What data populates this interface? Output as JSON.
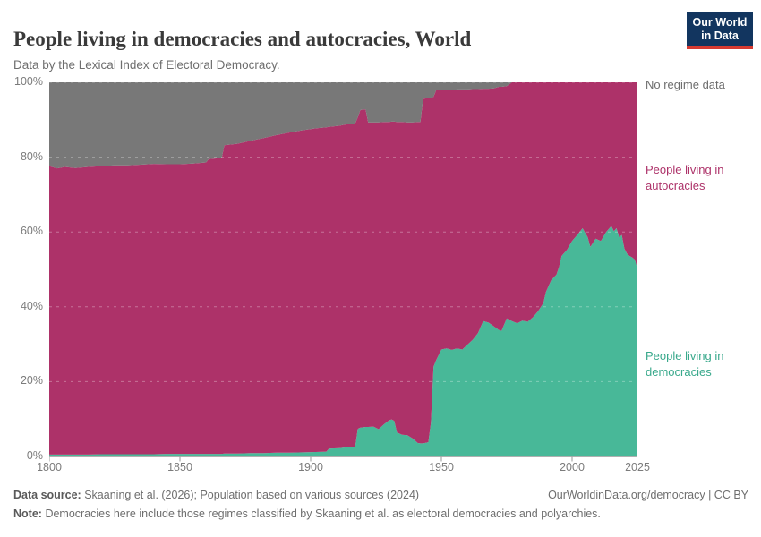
{
  "header": {
    "title": "People living in democracies and autocracies, World",
    "subtitle": "Data by the Lexical Index of Electoral Democracy.",
    "logo": {
      "line1": "Our World",
      "line2": "in Data"
    }
  },
  "chart": {
    "y_ticks": [
      "100%",
      "80%",
      "60%",
      "40%",
      "20%",
      "0%"
    ],
    "x_ticks": [
      "1800",
      "1850",
      "1900",
      "1950",
      "2000",
      "2025"
    ],
    "right_labels": [
      {
        "id": "no-regime-data",
        "text": "No regime data",
        "color": "#6e6e6e"
      },
      {
        "id": "autocracies",
        "text": "People living in autocracies",
        "color": "#ad3269"
      },
      {
        "id": "democracies",
        "text": "People living in democracies",
        "color": "#3aa98c"
      }
    ]
  },
  "footer": {
    "data_source_label": "Data source:",
    "data_source_text": "Skaaning et al. (2026); Population based on various sources (2024)",
    "link_text": "OurWorldinData.org/democracy | CC BY",
    "note_label": "Note:",
    "note_text": "Democracies here include those regimes classified by Skaaning et al. as electoral democracies and polyarchies."
  },
  "chart_data": {
    "type": "area",
    "stacking": "percent",
    "title": "People living in democracies and autocracies, World",
    "x_range": [
      1800,
      2025
    ],
    "y_range": [
      0,
      100
    ],
    "x_axis_ticks": [
      1800,
      1850,
      1900,
      1950,
      2000,
      2025
    ],
    "y_axis_ticks": [
      0,
      20,
      40,
      60,
      80,
      100
    ],
    "grid": "dashed-horizontal",
    "legend_position": "right-edge-labels",
    "axis_color": "#b0b0b0",
    "x": [
      1800,
      1803,
      1806,
      1810,
      1815,
      1820,
      1825,
      1830,
      1835,
      1840,
      1845,
      1850,
      1855,
      1860,
      1861,
      1866,
      1867,
      1872,
      1877,
      1882,
      1887,
      1892,
      1897,
      1902,
      1906,
      1907,
      1911,
      1913,
      1917,
      1918,
      1919,
      1921,
      1922,
      1924,
      1926,
      1928,
      1930,
      1931,
      1932,
      1933,
      1935,
      1937,
      1939,
      1941,
      1942,
      1943,
      1945,
      1946,
      1947,
      1948,
      1950,
      1952,
      1954,
      1956,
      1958,
      1960,
      1962,
      1964,
      1966,
      1968,
      1970,
      1972,
      1973,
      1975,
      1977,
      1979,
      1981,
      1983,
      1985,
      1987,
      1989,
      1990,
      1992,
      1994,
      1995,
      1996,
      1998,
      2000,
      2002,
      2004,
      2006,
      2007,
      2009,
      2011,
      2013,
      2015,
      2016,
      2017,
      2018,
      2019,
      2020,
      2021,
      2022,
      2023,
      2024,
      2025
    ],
    "series": [
      {
        "id": "democracies",
        "name": "People living in democracies",
        "color": "#48b898",
        "values": [
          0.5,
          0.5,
          0.5,
          0.5,
          0.5,
          0.6,
          0.6,
          0.6,
          0.6,
          0.6,
          0.7,
          0.7,
          0.7,
          0.7,
          0.7,
          0.7,
          0.8,
          0.8,
          0.9,
          0.9,
          1.0,
          1.0,
          1.1,
          1.2,
          1.3,
          2.1,
          2.2,
          2.4,
          2.4,
          7.4,
          7.7,
          7.9,
          7.9,
          8.0,
          7.3,
          8.6,
          9.7,
          9.9,
          9.5,
          6.4,
          5.8,
          5.7,
          4.8,
          3.6,
          3.5,
          3.5,
          3.8,
          9.0,
          24.0,
          25.8,
          28.6,
          28.9,
          28.5,
          28.9,
          28.6,
          29.9,
          31.2,
          33.0,
          36.2,
          35.8,
          34.8,
          33.8,
          33.6,
          36.9,
          36.2,
          35.6,
          36.3,
          36.0,
          37.2,
          38.8,
          41.0,
          44.0,
          47.1,
          48.6,
          50.6,
          53.6,
          55.2,
          57.6,
          59.2,
          61.0,
          58.6,
          56.0,
          58.2,
          57.6,
          60.0,
          61.6,
          60.2,
          61.0,
          58.6,
          59.2,
          55.6,
          54.2,
          53.6,
          53.2,
          52.6,
          50.2
        ]
      },
      {
        "id": "autocracies",
        "name": "People living in autocracies",
        "color": "#ad3269",
        "values": [
          77.1,
          76.5,
          76.9,
          76.6,
          76.9,
          77.0,
          77.2,
          77.2,
          77.4,
          77.6,
          77.4,
          77.4,
          77.6,
          77.9,
          78.8,
          79.1,
          82.4,
          82.8,
          83.5,
          84.2,
          84.9,
          85.6,
          86.1,
          86.5,
          86.7,
          86.0,
          86.2,
          86.3,
          86.6,
          83.2,
          84.9,
          84.9,
          81.4,
          81.3,
          82.0,
          80.8,
          79.7,
          79.6,
          80.0,
          83.0,
          83.6,
          83.6,
          84.5,
          85.8,
          85.9,
          92.1,
          92.0,
          86.9,
          72.1,
          72.1,
          69.4,
          69.1,
          69.5,
          69.2,
          69.5,
          68.2,
          67.0,
          65.2,
          62.1,
          62.5,
          63.6,
          65.0,
          65.2,
          62.1,
          63.8,
          64.4,
          63.7,
          64.0,
          62.8,
          61.2,
          59.0,
          56.0,
          52.9,
          51.4,
          49.4,
          46.4,
          44.8,
          42.4,
          40.8,
          39.0,
          41.4,
          44.0,
          41.8,
          42.4,
          40.0,
          38.4,
          39.8,
          39.0,
          41.4,
          40.8,
          44.4,
          45.8,
          46.4,
          46.8,
          47.4,
          49.8
        ]
      },
      {
        "id": "no_regime_data",
        "name": "No regime data",
        "color": "#787878",
        "values": [
          22.4,
          23.0,
          22.6,
          22.9,
          22.6,
          22.4,
          22.2,
          22.2,
          22.0,
          21.8,
          21.9,
          21.9,
          21.7,
          21.4,
          20.5,
          20.2,
          16.8,
          16.4,
          15.6,
          14.9,
          14.1,
          13.4,
          12.8,
          12.3,
          12.0,
          11.9,
          11.6,
          11.3,
          11.0,
          9.4,
          7.4,
          7.2,
          10.7,
          10.7,
          10.7,
          10.6,
          10.6,
          10.5,
          10.5,
          10.6,
          10.6,
          10.7,
          10.7,
          10.6,
          10.6,
          4.4,
          4.2,
          4.1,
          3.9,
          2.1,
          2.0,
          2.0,
          2.0,
          1.9,
          1.9,
          1.9,
          1.8,
          1.8,
          1.7,
          1.7,
          1.6,
          1.2,
          1.2,
          1.0,
          0,
          0,
          0,
          0,
          0,
          0,
          0,
          0,
          0,
          0,
          0,
          0,
          0,
          0,
          0,
          0,
          0,
          0,
          0,
          0,
          0,
          0,
          0,
          0,
          0,
          0,
          0,
          0,
          0,
          0,
          0,
          0
        ]
      }
    ]
  }
}
